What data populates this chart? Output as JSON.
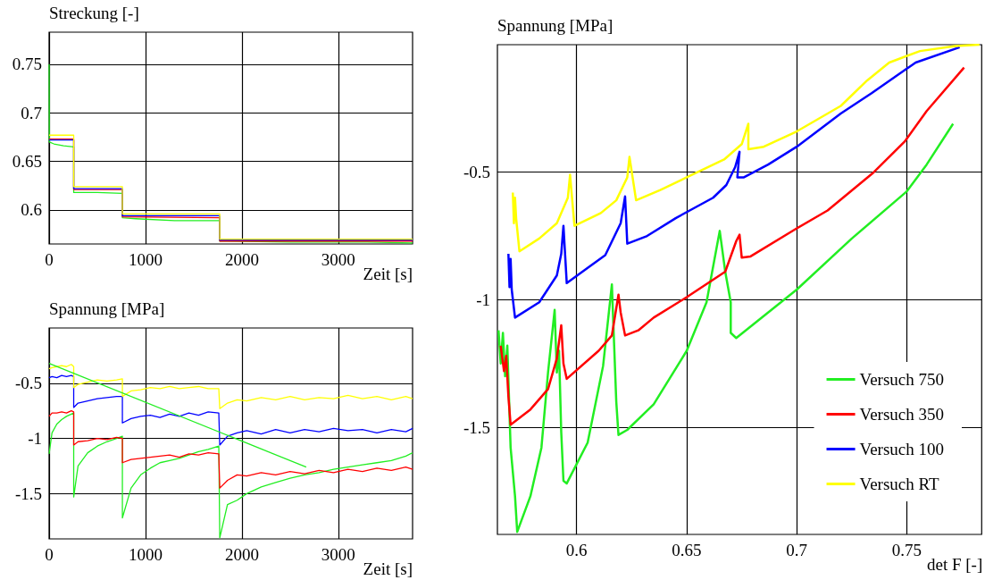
{
  "chart_data": [
    {
      "type": "line",
      "ylabel": "Streckung [-]",
      "xlabel": "Zeit [s]",
      "xlim": [
        0,
        3770
      ],
      "ylim": [
        0.565,
        0.783
      ],
      "xticks": [
        0,
        1000,
        2000,
        3000
      ],
      "yticks": [
        0.6,
        0.65,
        0.7,
        0.75
      ],
      "grid": true,
      "series": [
        {
          "color": "#22ee22",
          "x": [
            0,
            2,
            50,
            150,
            255,
            255,
            300,
            500,
            760,
            760,
            900,
            1300,
            1770,
            1770,
            2500,
            3300,
            3770
          ],
          "values": [
            0.75,
            0.67,
            0.668,
            0.666,
            0.665,
            0.618,
            0.618,
            0.618,
            0.617,
            0.592,
            0.591,
            0.589,
            0.589,
            0.568,
            0.567,
            0.567,
            0.566
          ]
        },
        {
          "color": "#ff0000",
          "x": [
            0,
            255,
            255,
            760,
            760,
            1770,
            1770,
            3770
          ],
          "values": [
            0.673,
            0.673,
            0.621,
            0.621,
            0.593,
            0.592,
            0.568,
            0.568
          ]
        },
        {
          "color": "#0000ff",
          "x": [
            0,
            255,
            255,
            760,
            760,
            1770,
            1770,
            3770
          ],
          "values": [
            0.672,
            0.672,
            0.622,
            0.622,
            0.594,
            0.594,
            0.569,
            0.569
          ]
        },
        {
          "color": "#ffff00",
          "x": [
            0,
            255,
            255,
            760,
            760,
            1770,
            1770,
            3770
          ],
          "values": [
            0.677,
            0.677,
            0.624,
            0.624,
            0.596,
            0.596,
            0.57,
            0.57
          ]
        }
      ]
    },
    {
      "type": "line",
      "ylabel": "Spannung [MPa]",
      "xlabel": "Zeit [s]",
      "xlim": [
        0,
        3770
      ],
      "ylim": [
        -1.91,
        0
      ],
      "xticks": [
        0,
        1000,
        2000,
        3000
      ],
      "yticks": [
        -1.5,
        -1,
        -0.5
      ],
      "grid": true,
      "x": [
        0,
        30,
        80,
        130,
        180,
        230,
        255,
        255,
        300,
        400,
        500,
        600,
        700,
        760,
        760,
        850,
        950,
        1050,
        1150,
        1250,
        1350,
        1450,
        1550,
        1650,
        1760,
        1770,
        1850,
        1950,
        2050,
        2200,
        2350,
        2500,
        2650,
        2800,
        2950,
        3100,
        3250,
        3400,
        3550,
        3700,
        3770
      ],
      "series": [
        {
          "color": "#22ee22",
          "values": [
            -1.14,
            -0.95,
            -0.87,
            -0.83,
            -0.8,
            -0.78,
            -0.77,
            -1.53,
            -1.25,
            -1.13,
            -1.07,
            -1.03,
            -1,
            -0.98,
            -1.72,
            -1.45,
            -1.33,
            -1.27,
            -1.22,
            -1.2,
            -1.18,
            -1.15,
            -1.12,
            -1.1,
            -1.07,
            -1.9,
            -1.6,
            -1.56,
            -1.5,
            -1.44,
            -1.4,
            -1.36,
            -1.33,
            -1.31,
            -1.28,
            -1.26,
            -1.24,
            -1.22,
            -1.2,
            -1.16,
            -1.13
          ]
        },
        {
          "color": "#ff0000",
          "values": [
            -0.8,
            -0.77,
            -0.77,
            -0.76,
            -0.77,
            -0.75,
            -0.76,
            -1.06,
            -1.03,
            -1.02,
            -1,
            -1.01,
            -0.99,
            -1,
            -1.22,
            -1.19,
            -1.18,
            -1.17,
            -1.16,
            -1.15,
            -1.17,
            -1.14,
            -1.15,
            -1.13,
            -1.14,
            -1.45,
            -1.38,
            -1.33,
            -1.34,
            -1.31,
            -1.33,
            -1.3,
            -1.32,
            -1.29,
            -1.31,
            -1.28,
            -1.3,
            -1.27,
            -1.29,
            -1.26,
            -1.28
          ]
        },
        {
          "color": "#0000ff",
          "values": [
            -0.45,
            -0.44,
            -0.45,
            -0.43,
            -0.44,
            -0.43,
            -0.44,
            -0.72,
            -0.68,
            -0.66,
            -0.64,
            -0.63,
            -0.62,
            -0.62,
            -0.86,
            -0.82,
            -0.8,
            -0.79,
            -0.81,
            -0.78,
            -0.8,
            -0.77,
            -0.79,
            -0.76,
            -0.77,
            -1.06,
            -0.98,
            -0.95,
            -0.93,
            -0.96,
            -0.92,
            -0.95,
            -0.92,
            -0.94,
            -0.91,
            -0.93,
            -0.92,
            -0.95,
            -0.92,
            -0.94,
            -0.91
          ]
        },
        {
          "color": "#ffff00",
          "values": [
            -0.37,
            -0.36,
            -0.35,
            -0.34,
            -0.35,
            -0.33,
            -0.35,
            -0.54,
            -0.51,
            -0.49,
            -0.47,
            -0.48,
            -0.47,
            -0.46,
            -0.62,
            -0.57,
            -0.56,
            -0.54,
            -0.55,
            -0.53,
            -0.55,
            -0.54,
            -0.53,
            -0.55,
            -0.55,
            -0.73,
            -0.68,
            -0.65,
            -0.66,
            -0.63,
            -0.65,
            -0.62,
            -0.65,
            -0.63,
            -0.64,
            -0.61,
            -0.64,
            -0.62,
            -0.65,
            -0.62,
            -0.64
          ]
        },
        {
          "color": "#22ee22",
          "x": [
            0,
            2667
          ],
          "values": [
            -0.32,
            -1.26
          ]
        }
      ]
    },
    {
      "type": "line",
      "ylabel": "Spannung [MPa]",
      "xlabel": "det F [-]",
      "xlim": [
        0.564,
        0.784
      ],
      "ylim": [
        -1.92,
        0
      ],
      "xticks": [
        0.6,
        0.65,
        0.7,
        0.75
      ],
      "yticks": [
        -1.5,
        -1,
        -0.5
      ],
      "grid": true,
      "legend": "bottom right",
      "series": [
        {
          "name": "Versuch 750",
          "color": "#22ee22",
          "x": [
            0.5645,
            0.5655,
            0.5665,
            0.5675,
            0.5685,
            0.57,
            0.572,
            0.573,
            0.579,
            0.584,
            0.587,
            0.59,
            0.591,
            0.592,
            0.593,
            0.594,
            0.5955,
            0.605,
            0.612,
            0.616,
            0.617,
            0.618,
            0.619,
            0.623,
            0.635,
            0.65,
            0.659,
            0.6635,
            0.665,
            0.6675,
            0.67,
            0.67,
            0.6725,
            0.7,
            0.725,
            0.75,
            0.759,
            0.771
          ],
          "values": [
            -1.12,
            -1.25,
            -1.13,
            -1.3,
            -1.18,
            -1.58,
            -1.77,
            -1.91,
            -1.77,
            -1.58,
            -1.285,
            -1.04,
            -1.285,
            -1.2,
            -1.52,
            -1.71,
            -1.72,
            -1.56,
            -1.26,
            -0.94,
            -1.17,
            -1.4,
            -1.53,
            -1.51,
            -1.41,
            -1.2,
            -1.01,
            -0.8,
            -0.73,
            -0.89,
            -1.01,
            -1.13,
            -1.15,
            -0.96,
            -0.76,
            -0.575,
            -0.47,
            -0.31
          ]
        },
        {
          "name": "Versuch 350",
          "color": "#ff0000",
          "x": [
            0.5655,
            0.567,
            0.568,
            0.569,
            0.57,
            0.579,
            0.587,
            0.591,
            0.593,
            0.594,
            0.5955,
            0.61,
            0.616,
            0.619,
            0.62,
            0.622,
            0.628,
            0.635,
            0.65,
            0.6675,
            0.6725,
            0.674,
            0.675,
            0.679,
            0.7,
            0.714,
            0.735,
            0.749,
            0.759,
            0.776
          ],
          "values": [
            -1.18,
            -1.28,
            -1.22,
            -1.38,
            -1.49,
            -1.43,
            -1.35,
            -1.23,
            -1.1,
            -1.25,
            -1.31,
            -1.2,
            -1.14,
            -0.98,
            -1.05,
            -1.14,
            -1.12,
            -1.07,
            -0.99,
            -0.89,
            -0.77,
            -0.745,
            -0.835,
            -0.83,
            -0.72,
            -0.65,
            -0.5,
            -0.38,
            -0.26,
            -0.09
          ]
        },
        {
          "name": "Versuch 100",
          "color": "#0000ff",
          "x": [
            0.569,
            0.5695,
            0.57,
            0.5705,
            0.572,
            0.583,
            0.591,
            0.593,
            0.594,
            0.5955,
            0.605,
            0.613,
            0.62,
            0.622,
            0.623,
            0.632,
            0.645,
            0.662,
            0.668,
            0.672,
            0.674,
            0.673,
            0.676,
            0.687,
            0.7,
            0.72,
            0.734,
            0.754,
            0.774
          ],
          "values": [
            -0.82,
            -0.95,
            -0.84,
            -0.96,
            -1.07,
            -1.01,
            -0.905,
            -0.82,
            -0.71,
            -0.935,
            -0.875,
            -0.825,
            -0.7,
            -0.595,
            -0.78,
            -0.75,
            -0.68,
            -0.6,
            -0.55,
            -0.48,
            -0.42,
            -0.52,
            -0.52,
            -0.47,
            -0.4,
            -0.27,
            -0.19,
            -0.07,
            -0.01
          ]
        },
        {
          "name": "Versuch RT",
          "color": "#ffff00",
          "x": [
            0.571,
            0.5715,
            0.572,
            0.5725,
            0.574,
            0.583,
            0.591,
            0.596,
            0.597,
            0.599,
            0.611,
            0.618,
            0.623,
            0.624,
            0.627,
            0.638,
            0.65,
            0.667,
            0.675,
            0.678,
            0.678,
            0.685,
            0.7,
            0.72,
            0.732,
            0.742,
            0.756,
            0.772,
            0.783
          ],
          "values": [
            -0.58,
            -0.7,
            -0.6,
            -0.68,
            -0.81,
            -0.76,
            -0.7,
            -0.6,
            -0.51,
            -0.71,
            -0.66,
            -0.61,
            -0.52,
            -0.44,
            -0.61,
            -0.57,
            -0.52,
            -0.45,
            -0.39,
            -0.31,
            -0.41,
            -0.4,
            -0.34,
            -0.24,
            -0.14,
            -0.07,
            -0.025,
            -0.005,
            0
          ]
        }
      ]
    }
  ]
}
